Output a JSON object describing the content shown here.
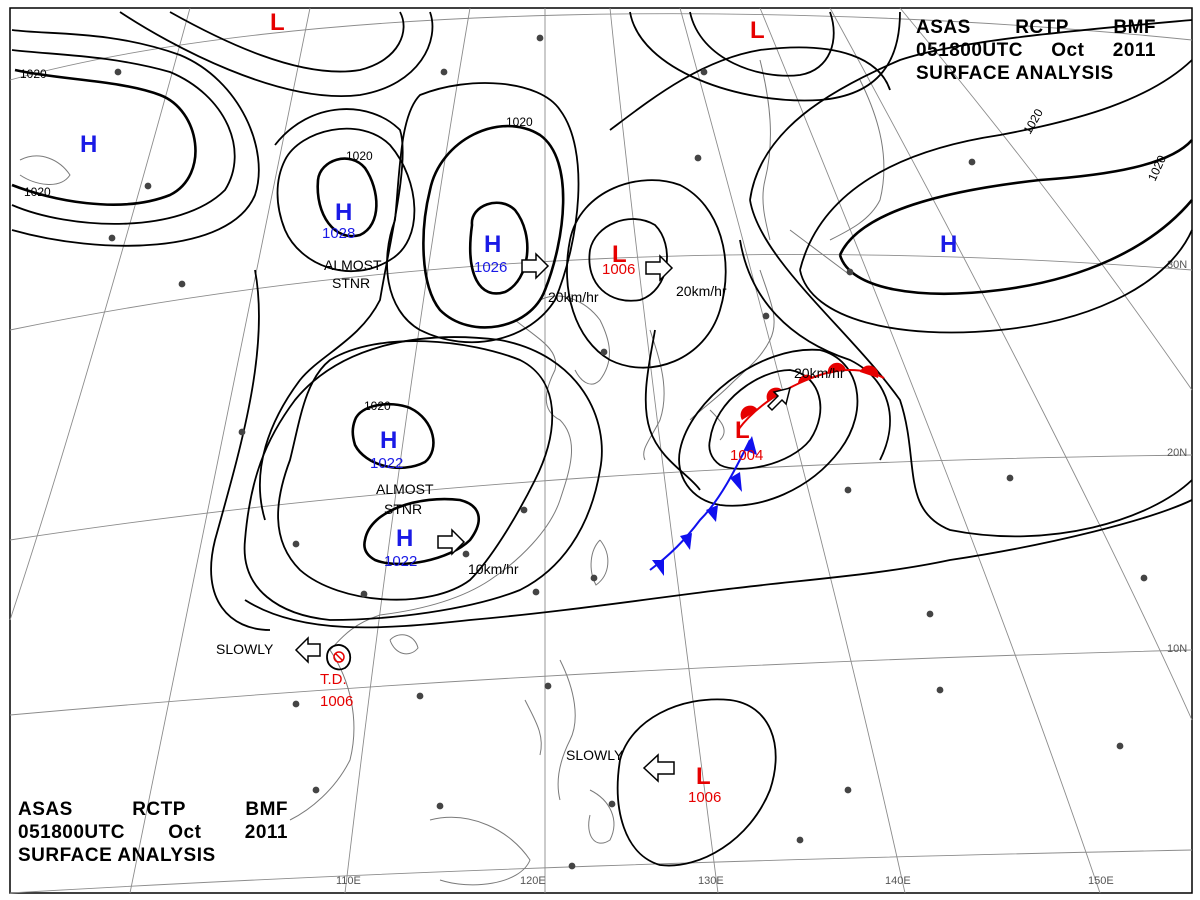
{
  "header": {
    "agency": [
      "ASAS",
      "RCTP",
      "BMF"
    ],
    "time": [
      "051800UTC",
      "Oct",
      "2011"
    ],
    "title": "SURFACE ANALYSIS"
  },
  "lon_labels": [
    "110E",
    "120E",
    "130E",
    "140E",
    "150E"
  ],
  "lat_labels": [
    "30N",
    "20N",
    "10N"
  ],
  "pressure_centers": [
    {
      "type": "H",
      "value": ""
    },
    {
      "type": "H",
      "value": "1028"
    },
    {
      "type": "H",
      "value": "1026"
    },
    {
      "type": "L",
      "value": "1006"
    },
    {
      "type": "H",
      "value": ""
    },
    {
      "type": "H",
      "value": "1022"
    },
    {
      "type": "H",
      "value": "1022"
    },
    {
      "type": "L",
      "value": "1004"
    },
    {
      "type": "L",
      "value": "1006"
    },
    {
      "type": "L",
      "value": ""
    },
    {
      "type": "L",
      "value": ""
    }
  ],
  "isobar_labels": [
    "1020",
    "1020",
    "1020",
    "1020",
    "1020",
    "1020",
    "1020"
  ],
  "annotations": {
    "almost_stnr_1": [
      "ALMOST",
      "STNR"
    ],
    "almost_stnr_2": [
      "ALMOST",
      "STNR"
    ],
    "motion_1": "20km/hr",
    "motion_2": "20km/hr",
    "motion_3": "20km/hr",
    "motion_4": "10km/hr",
    "slowly_1": "SLOWLY",
    "slowly_2": "SLOWLY",
    "td_label": "T.D.",
    "td_value": "1006"
  },
  "colors": {
    "high": "#1a1ae6",
    "low": "#e60000",
    "isobar": "#000000",
    "grid": "#8c8c8c",
    "coast": "#777777",
    "cold_front": "#1010ee",
    "warm_front": "#e60000"
  }
}
